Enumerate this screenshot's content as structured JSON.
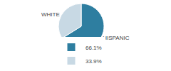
{
  "chart_data": {
    "type": "pie",
    "categories": [
      "HISPANIC",
      "WHITE"
    ],
    "values": [
      66.1,
      33.9
    ],
    "value_labels": [
      "66.1%",
      "33.9%"
    ],
    "colors": [
      "#2e7ea0",
      "#c8d9e4"
    ],
    "legend": "bottom"
  }
}
